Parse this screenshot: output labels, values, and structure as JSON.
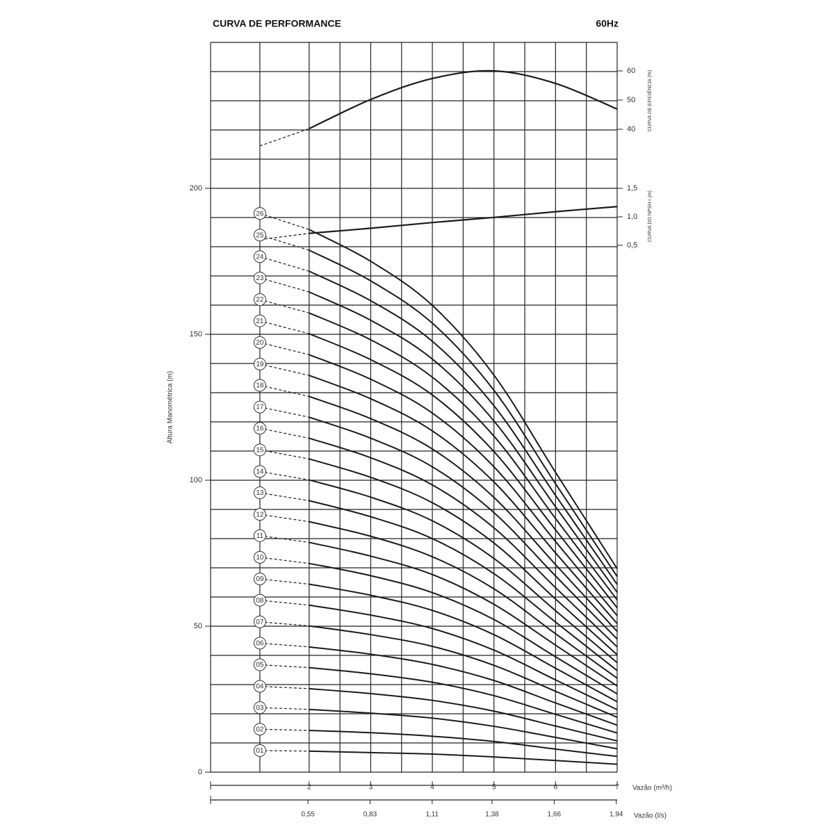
{
  "chart_data": {
    "type": "line",
    "title": "CURVA DE PERFORMANCE",
    "subtitle": "60Hz",
    "ylabel": "Altura Manométrica (m)",
    "y2label": "CURVA DE EFICIÊNCIA (%)",
    "y3label": "CURVA DO NPSH r (m)",
    "xlabel": "Vazão (m³/h)",
    "x2label": "Vazão (l/s)",
    "xlim": [
      0.4,
      7
    ],
    "xticks": [
      2,
      3,
      4,
      5,
      6,
      7
    ],
    "x2lim": [
      0.111,
      1.944
    ],
    "x2ticks": [
      {
        "value": 0.55,
        "label": "0,55"
      },
      {
        "value": 0.83,
        "label": "0,83"
      },
      {
        "value": 1.11,
        "label": "1,11"
      },
      {
        "value": 1.38,
        "label": "1,38"
      },
      {
        "value": 1.66,
        "label": "1,66"
      },
      {
        "value": 1.94,
        "label": "1,94"
      }
    ],
    "ylim": [
      0,
      250
    ],
    "yticks": [
      0,
      50,
      100,
      150,
      200
    ],
    "y2lim": [
      30,
      70
    ],
    "y2ticks": [
      40,
      50,
      60
    ],
    "y3lim": [
      0,
      2
    ],
    "y3ticks": [
      {
        "value": 0.5,
        "label": "0,5"
      },
      {
        "value": 1.0,
        "label": "1,0"
      },
      {
        "value": 1.5,
        "label": "1,5"
      }
    ],
    "grid": true,
    "xgrid": [
      1.2,
      2,
      2.5,
      3,
      3.5,
      4,
      4.5,
      5,
      5.5,
      6,
      6.5,
      7
    ],
    "ygrid": [
      0,
      10,
      20,
      30,
      40,
      50,
      60,
      70,
      80,
      90,
      100,
      110,
      120,
      130,
      140,
      150,
      160,
      170,
      180,
      190,
      200,
      210,
      220,
      230,
      240,
      250
    ],
    "line_color": "#1a1a1a",
    "x": [
      1.2,
      2,
      3,
      4,
      5,
      6,
      7
    ],
    "series": [
      {
        "name": "01",
        "values": [
          7.4,
          7.2,
          6.7,
          6.2,
          5.2,
          4.0,
          2.7
        ]
      },
      {
        "name": "02",
        "values": [
          14.7,
          14.3,
          13.5,
          12.3,
          10.5,
          7.9,
          5.4
        ]
      },
      {
        "name": "03",
        "values": [
          22.1,
          21.5,
          20.2,
          18.5,
          15.7,
          11.9,
          8.0
        ]
      },
      {
        "name": "04",
        "values": [
          29.4,
          28.6,
          26.9,
          24.6,
          20.9,
          15.8,
          10.7
        ]
      },
      {
        "name": "05",
        "values": [
          36.8,
          35.8,
          33.7,
          30.8,
          26.2,
          19.8,
          13.4
        ]
      },
      {
        "name": "06",
        "values": [
          44.2,
          42.9,
          40.4,
          36.9,
          31.4,
          23.7,
          16.1
        ]
      },
      {
        "name": "07",
        "values": [
          51.5,
          50.1,
          47.1,
          43.1,
          36.6,
          27.7,
          18.8
        ]
      },
      {
        "name": "08",
        "values": [
          58.9,
          57.2,
          53.8,
          49.2,
          41.8,
          31.6,
          21.4
        ]
      },
      {
        "name": "09",
        "values": [
          66.2,
          64.4,
          60.6,
          55.4,
          47.1,
          35.6,
          24.1
        ]
      },
      {
        "name": "10",
        "values": [
          73.6,
          71.5,
          67.3,
          61.5,
          52.3,
          39.5,
          26.8
        ]
      },
      {
        "name": "11",
        "values": [
          81.0,
          78.7,
          74.0,
          67.7,
          57.5,
          43.5,
          29.5
        ]
      },
      {
        "name": "12",
        "values": [
          88.3,
          85.8,
          80.8,
          73.8,
          62.8,
          47.4,
          32.2
        ]
      },
      {
        "name": "13",
        "values": [
          95.7,
          93.0,
          87.5,
          80.0,
          68.0,
          51.4,
          34.8
        ]
      },
      {
        "name": "14",
        "values": [
          103.0,
          100.1,
          94.2,
          86.1,
          73.2,
          55.3,
          37.5
        ]
      },
      {
        "name": "15",
        "values": [
          110.4,
          107.3,
          101.0,
          92.3,
          78.5,
          59.3,
          40.2
        ]
      },
      {
        "name": "16",
        "values": [
          117.8,
          114.4,
          107.7,
          98.4,
          83.7,
          63.2,
          42.9
        ]
      },
      {
        "name": "17",
        "values": [
          125.1,
          121.6,
          114.4,
          104.6,
          88.9,
          67.2,
          45.6
        ]
      },
      {
        "name": "18",
        "values": [
          132.5,
          128.7,
          121.1,
          110.7,
          94.1,
          71.1,
          48.2
        ]
      },
      {
        "name": "19",
        "values": [
          139.8,
          135.9,
          127.9,
          116.9,
          99.4,
          75.1,
          50.9
        ]
      },
      {
        "name": "20",
        "values": [
          147.2,
          143.0,
          134.6,
          123.0,
          104.6,
          79.0,
          53.6
        ]
      },
      {
        "name": "21",
        "values": [
          154.6,
          150.2,
          141.3,
          129.2,
          109.8,
          83.0,
          56.3
        ]
      },
      {
        "name": "22",
        "values": [
          161.9,
          157.3,
          148.1,
          135.3,
          115.1,
          86.9,
          59.0
        ]
      },
      {
        "name": "23",
        "values": [
          169.3,
          164.5,
          154.8,
          141.5,
          120.3,
          90.9,
          61.6
        ]
      },
      {
        "name": "24",
        "values": [
          176.6,
          171.6,
          161.5,
          147.6,
          125.5,
          94.8,
          64.3
        ]
      },
      {
        "name": "25",
        "values": [
          184.0,
          178.8,
          168.3,
          153.8,
          130.8,
          98.8,
          67.0
        ]
      },
      {
        "name": "26",
        "values": [
          191.4,
          185.9,
          175.0,
          159.9,
          136.0,
          102.7,
          69.7
        ]
      }
    ],
    "efficiency": {
      "axis": "y2",
      "values": [
        34.3,
        40.2,
        50.2,
        57.4,
        60.0,
        55.7,
        46.9
      ]
    },
    "npsh": {
      "axis": "y3",
      "values": [
        0.6,
        0.71,
        0.8,
        0.9,
        0.99,
        1.09,
        1.18
      ]
    }
  }
}
